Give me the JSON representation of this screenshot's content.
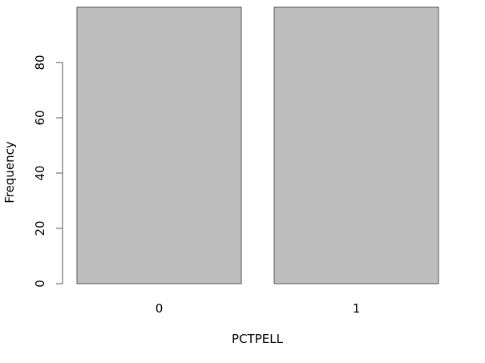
{
  "chart_data": {
    "type": "bar",
    "title": "",
    "xlabel": "PCTPELL",
    "ylabel": "Frequency",
    "categories": [
      "0",
      "1"
    ],
    "values": [
      100,
      100
    ],
    "ylim": [
      0,
      100
    ],
    "yticks": [
      0,
      20,
      40,
      60,
      80
    ],
    "grid": false,
    "legend": "none",
    "colors": {
      "bar_fill": "#bebebe",
      "bar_stroke": "#555555",
      "axis": "#555555"
    }
  }
}
